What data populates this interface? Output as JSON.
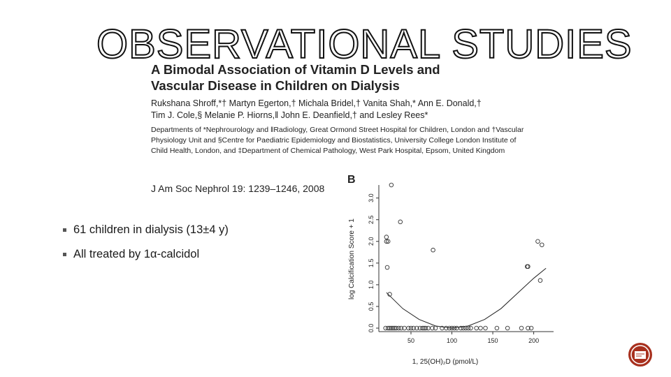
{
  "slide": {
    "title": "OBSERVATIONAL STUDIES",
    "bullets": [
      "61 children in dialysis (13±4 y)",
      "All treated by 1α-calcidol"
    ]
  },
  "paper": {
    "title_line1": "A Bimodal Association of Vitamin D Levels and",
    "title_line2": "Vascular Disease in Children on Dialysis",
    "authors_line1": "Rukshana Shroff,*† Martyn Egerton,† Michala Bridel,† Vanita Shah,* Ann E. Donald,†",
    "authors_line2": "Tim J. Cole,§ Melanie P. Hiorns,‖ John E. Deanfield,† and Lesley Rees*",
    "affil_line1": "Departments of *Nephrourology and ‖Radiology, Great Ormond Street Hospital for Children, London and †Vascular",
    "affil_line2": "Physiology Unit and §Centre for Paediatric Epidemiology and Biostatistics, University College London Institute of",
    "affil_line3": "Child Health, London, and ‡Department of Chemical Pathology, West Park Hospital, Epsom, United Kingdom",
    "citation": "J Am Soc Nephrol 19: 1239–1246, 2008"
  },
  "colors": {
    "text": "#1a1a1a",
    "logo_red": "#a8301e"
  },
  "chart_data": {
    "type": "scatter",
    "panel_label": "B",
    "xlabel": "1, 25(OH)₂D (pmol/L)",
    "ylabel": "log Calcification Score + 1",
    "xlim": [
      15,
      220
    ],
    "ylim": [
      0,
      3.3
    ],
    "xticks": [
      50,
      100,
      150,
      200
    ],
    "yticks": [
      0.0,
      0.5,
      1.0,
      1.5,
      2.0,
      2.5,
      3.0
    ],
    "ytick_labels": [
      "0.0",
      "0.5",
      "1.0",
      "1.5",
      "2.0",
      "2.5",
      "3.0"
    ],
    "points": [
      [
        26,
        3.3
      ],
      [
        37,
        2.45
      ],
      [
        77,
        1.8
      ],
      [
        20,
        2.1
      ],
      [
        20,
        2.0
      ],
      [
        22,
        2.0
      ],
      [
        21,
        1.4
      ],
      [
        24,
        0.78
      ],
      [
        192,
        1.42
      ],
      [
        193,
        1.42
      ],
      [
        205,
        2.0
      ],
      [
        210,
        1.92
      ],
      [
        208,
        1.1
      ],
      [
        19,
        0
      ],
      [
        22,
        0
      ],
      [
        24,
        0
      ],
      [
        26,
        0
      ],
      [
        28,
        0
      ],
      [
        30,
        0
      ],
      [
        32,
        0
      ],
      [
        35,
        0
      ],
      [
        38,
        0
      ],
      [
        42,
        0
      ],
      [
        47,
        0
      ],
      [
        50,
        0
      ],
      [
        53,
        0
      ],
      [
        57,
        0
      ],
      [
        61,
        0
      ],
      [
        64,
        0
      ],
      [
        66,
        0
      ],
      [
        68,
        0
      ],
      [
        71,
        0
      ],
      [
        76,
        0
      ],
      [
        80,
        0
      ],
      [
        88,
        0
      ],
      [
        93,
        0
      ],
      [
        97,
        0
      ],
      [
        100,
        0
      ],
      [
        103,
        0
      ],
      [
        106,
        0
      ],
      [
        111,
        0
      ],
      [
        114,
        0
      ],
      [
        117,
        0
      ],
      [
        120,
        0
      ],
      [
        123,
        0
      ],
      [
        130,
        0
      ],
      [
        135,
        0
      ],
      [
        141,
        0
      ],
      [
        155,
        0
      ],
      [
        168,
        0
      ],
      [
        185,
        0
      ],
      [
        193,
        0
      ],
      [
        197,
        0
      ]
    ],
    "fit_curve": [
      [
        20,
        0.82
      ],
      [
        40,
        0.45
      ],
      [
        60,
        0.2
      ],
      [
        80,
        0.05
      ],
      [
        100,
        0.0
      ],
      [
        120,
        0.05
      ],
      [
        140,
        0.2
      ],
      [
        160,
        0.45
      ],
      [
        180,
        0.8
      ],
      [
        200,
        1.15
      ],
      [
        215,
        1.38
      ]
    ]
  }
}
